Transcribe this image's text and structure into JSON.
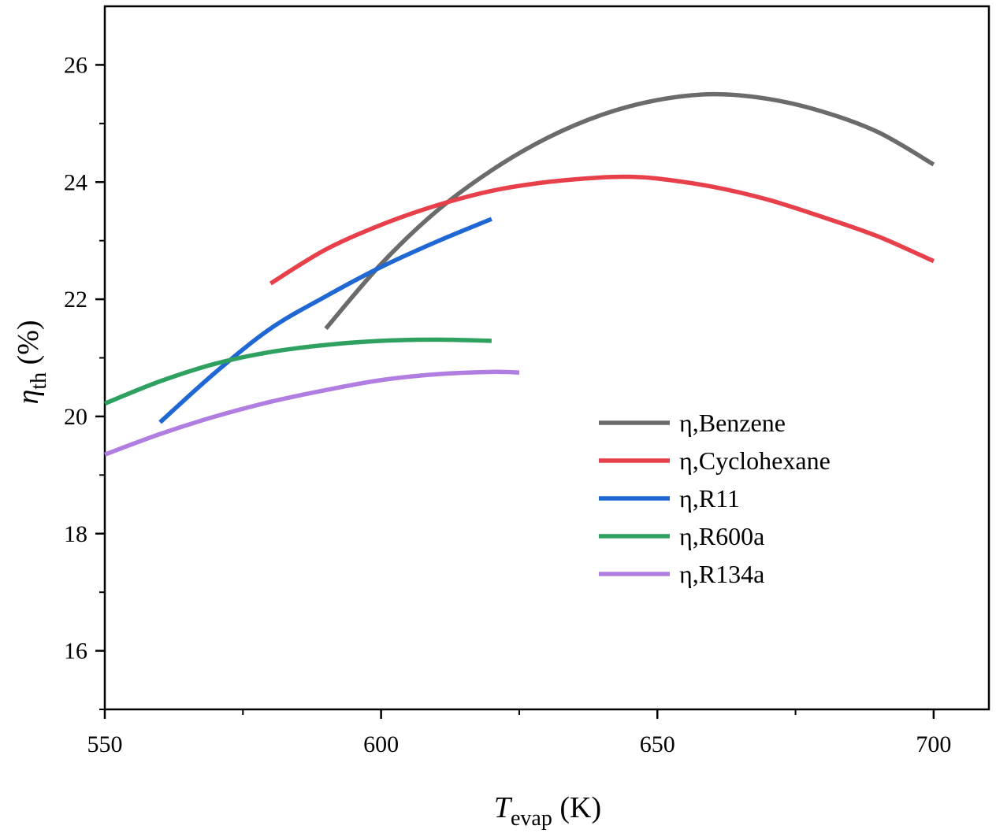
{
  "chart_data": {
    "type": "line",
    "title": "",
    "xlabel": {
      "main": "T",
      "sub": "evap",
      "unit": " (K)"
    },
    "ylabel": {
      "main": "η",
      "sub": "th",
      "unit": " (%)"
    },
    "xlim": [
      550,
      710
    ],
    "ylim": [
      15,
      27
    ],
    "x_ticks": [
      550,
      600,
      650,
      700
    ],
    "x_minor_ticks": [
      575,
      625,
      675
    ],
    "y_ticks": [
      16,
      18,
      20,
      22,
      24,
      26
    ],
    "y_minor_ticks": [
      15,
      17,
      19,
      21,
      23,
      25
    ],
    "grid": false,
    "legend_position": "right",
    "series": [
      {
        "name": "η,Benzene",
        "color": "#6b6b6b",
        "x": [
          590,
          600,
          610,
          620,
          630,
          640,
          650,
          660,
          670,
          680,
          690,
          700
        ],
        "y": [
          21.5,
          22.6,
          23.5,
          24.2,
          24.75,
          25.15,
          25.4,
          25.5,
          25.42,
          25.2,
          24.85,
          24.3
        ]
      },
      {
        "name": "η,Cyclohexane",
        "color": "#e8404a",
        "x": [
          580,
          590,
          600,
          610,
          620,
          630,
          640,
          645,
          650,
          660,
          670,
          680,
          690,
          700
        ],
        "y": [
          22.27,
          22.85,
          23.27,
          23.6,
          23.85,
          24.0,
          24.08,
          24.09,
          24.06,
          23.92,
          23.7,
          23.4,
          23.07,
          22.65
        ]
      },
      {
        "name": "η,R11",
        "color": "#1f67d2",
        "x": [
          560,
          570,
          580,
          590,
          600,
          610,
          620
        ],
        "y": [
          19.9,
          20.75,
          21.5,
          22.05,
          22.55,
          22.98,
          23.37
        ]
      },
      {
        "name": "η,R600a",
        "color": "#2ea160",
        "x": [
          550,
          560,
          570,
          580,
          590,
          600,
          610,
          620
        ],
        "y": [
          20.22,
          20.6,
          20.9,
          21.1,
          21.22,
          21.29,
          21.31,
          21.29
        ]
      },
      {
        "name": "η,R134a",
        "color": "#b07ee0",
        "x": [
          550,
          560,
          570,
          580,
          590,
          600,
          610,
          620,
          625
        ],
        "y": [
          19.35,
          19.7,
          20.0,
          20.25,
          20.45,
          20.62,
          20.72,
          20.76,
          20.75
        ]
      }
    ]
  }
}
